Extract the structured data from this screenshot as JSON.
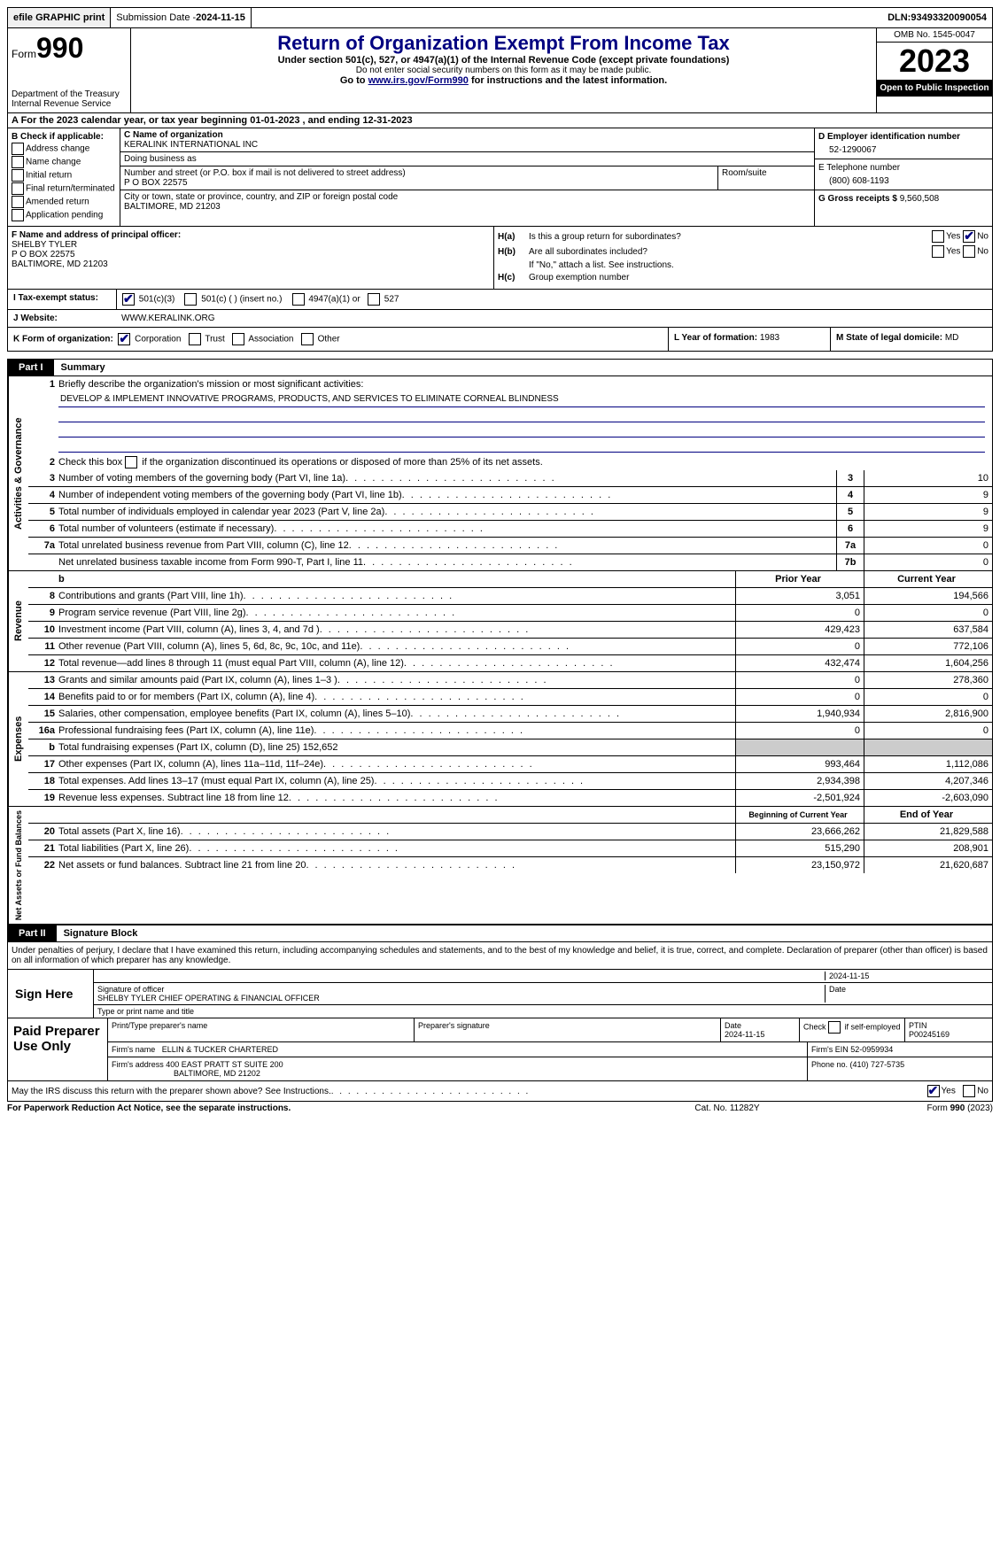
{
  "colors": {
    "accent": "#000080",
    "part_bg": "#000000",
    "shade": "#cccccc"
  },
  "topbar": {
    "efile": "efile GRAPHIC print",
    "submission_label": "Submission Date - ",
    "submission_date": "2024-11-15",
    "dln_label": "DLN: ",
    "dln": "93493320090054"
  },
  "header": {
    "form_label": "Form",
    "form_number": "990",
    "dept": "Department of the Treasury\nInternal Revenue Service",
    "title": "Return of Organization Exempt From Income Tax",
    "sub1": "Under section 501(c), 527, or 4947(a)(1) of the Internal Revenue Code (except private foundations)",
    "sub2": "Do not enter social security numbers on this form as it may be made public.",
    "sub3_pre": "Go to ",
    "sub3_link": "www.irs.gov/Form990",
    "sub3_post": " for instructions and the latest information.",
    "omb": "OMB No. 1545-0047",
    "year": "2023",
    "open": "Open to Public Inspection"
  },
  "row_a": {
    "text_pre": "A For the 2023 calendar year, or tax year beginning ",
    "begin": "01-01-2023",
    "mid": "   , and ending ",
    "end": "12-31-2023"
  },
  "section_b": {
    "label": "B Check if applicable:",
    "opts": [
      "Address change",
      "Name change",
      "Initial return",
      "Final return/terminated",
      "Amended return",
      "Application pending"
    ]
  },
  "section_c": {
    "name_label": "C Name of organization",
    "name": "KERALINK INTERNATIONAL INC",
    "dba_label": "Doing business as",
    "dba": "",
    "addr_label": "Number and street (or P.O. box if mail is not delivered to street address)",
    "addr": "P O BOX 22575",
    "room_label": "Room/suite",
    "room": "",
    "city_label": "City or town, state or province, country, and ZIP or foreign postal code",
    "city": "BALTIMORE, MD  21203"
  },
  "section_d": {
    "label": "D Employer identification number",
    "ein": "52-1290067",
    "tel_label": "E Telephone number",
    "tel": "(800) 608-1193",
    "g_label": "G Gross receipts $ ",
    "g_val": "9,560,508"
  },
  "section_f": {
    "label": "F  Name and address of principal officer:",
    "name": "SHELBY TYLER",
    "addr1": "P O BOX 22575",
    "addr2": "BALTIMORE, MD  21203"
  },
  "section_h": {
    "a_label": "H(a)",
    "a_text": "Is this a group return for subordinates?",
    "b_label": "H(b)",
    "b_text": "Are all subordinates included?",
    "b_note": "If \"No,\" attach a list. See instructions.",
    "c_label": "H(c)",
    "c_text": "Group exemption number ",
    "yes": "Yes",
    "no": "No",
    "a_no_checked": true
  },
  "row_i": {
    "label": "I    Tax-exempt status:",
    "opt1": "501(c)(3)",
    "opt2": "501(c) (   ) (insert no.)",
    "opt3": "4947(a)(1) or",
    "opt4": "527",
    "opt1_checked": true
  },
  "row_j": {
    "label": "J    Website:",
    "value": "WWW.KERALINK.ORG"
  },
  "row_k": {
    "label": "K Form of organization:",
    "opts": [
      "Corporation",
      "Trust",
      "Association",
      "Other"
    ],
    "checked_index": 0,
    "l_label": "L Year of formation: ",
    "l_val": "1983",
    "m_label": "M State of legal domicile:\n",
    "m_val": "MD"
  },
  "part1": {
    "num": "Part I",
    "title": "Summary",
    "sections": {
      "governance": {
        "label": "Activities & Governance",
        "line1_label": "Briefly describe the organization's mission or most significant activities:",
        "mission": "DEVELOP & IMPLEMENT INNOVATIVE PROGRAMS, PRODUCTS, AND SERVICES TO ELIMINATE CORNEAL BLINDNESS",
        "line2": "Check this box        if the organization discontinued its operations or disposed of more than 25% of its net assets.",
        "rows": [
          {
            "n": "3",
            "d": "Number of voting members of the governing body (Part VI, line 1a)",
            "bl": "3",
            "v": "10"
          },
          {
            "n": "4",
            "d": "Number of independent voting members of the governing body (Part VI, line 1b)",
            "bl": "4",
            "v": "9"
          },
          {
            "n": "5",
            "d": "Total number of individuals employed in calendar year 2023 (Part V, line 2a)",
            "bl": "5",
            "v": "9"
          },
          {
            "n": "6",
            "d": "Total number of volunteers (estimate if necessary)",
            "bl": "6",
            "v": "9"
          },
          {
            "n": "7a",
            "d": "Total unrelated business revenue from Part VIII, column (C), line 12",
            "bl": "7a",
            "v": "0"
          },
          {
            "n": "",
            "d": "Net unrelated business taxable income from Form 990-T, Part I, line 11",
            "bl": "7b",
            "v": "0"
          }
        ]
      },
      "revenue": {
        "label": "Revenue",
        "hdr_prior": "Prior Year",
        "hdr_current": "Current Year",
        "rows": [
          {
            "n": "8",
            "d": "Contributions and grants (Part VIII, line 1h)",
            "p": "3,051",
            "c": "194,566"
          },
          {
            "n": "9",
            "d": "Program service revenue (Part VIII, line 2g)",
            "p": "0",
            "c": "0"
          },
          {
            "n": "10",
            "d": "Investment income (Part VIII, column (A), lines 3, 4, and 7d )",
            "p": "429,423",
            "c": "637,584"
          },
          {
            "n": "11",
            "d": "Other revenue (Part VIII, column (A), lines 5, 6d, 8c, 9c, 10c, and 11e)",
            "p": "0",
            "c": "772,106"
          },
          {
            "n": "12",
            "d": "Total revenue—add lines 8 through 11 (must equal Part VIII, column (A), line 12)",
            "p": "432,474",
            "c": "1,604,256"
          }
        ]
      },
      "expenses": {
        "label": "Expenses",
        "rows": [
          {
            "n": "13",
            "d": "Grants and similar amounts paid (Part IX, column (A), lines 1–3 )",
            "p": "0",
            "c": "278,360"
          },
          {
            "n": "14",
            "d": "Benefits paid to or for members (Part IX, column (A), line 4)",
            "p": "0",
            "c": "0"
          },
          {
            "n": "15",
            "d": "Salaries, other compensation, employee benefits (Part IX, column (A), lines 5–10)",
            "p": "1,940,934",
            "c": "2,816,900"
          },
          {
            "n": "16a",
            "d": "Professional fundraising fees (Part IX, column (A), line 11e)",
            "p": "0",
            "c": "0"
          },
          {
            "n": "b",
            "d": "Total fundraising expenses (Part IX, column (D), line 25) 152,652",
            "p": "",
            "c": "",
            "shaded": true
          },
          {
            "n": "17",
            "d": "Other expenses (Part IX, column (A), lines 11a–11d, 11f–24e)",
            "p": "993,464",
            "c": "1,112,086"
          },
          {
            "n": "18",
            "d": "Total expenses. Add lines 13–17 (must equal Part IX, column (A), line 25)",
            "p": "2,934,398",
            "c": "4,207,346"
          },
          {
            "n": "19",
            "d": "Revenue less expenses. Subtract line 18 from line 12",
            "p": "-2,501,924",
            "c": "-2,603,090"
          }
        ]
      },
      "netassets": {
        "label": "Net Assets or Fund Balances",
        "hdr_begin": "Beginning of Current Year",
        "hdr_end": "End of Year",
        "rows": [
          {
            "n": "20",
            "d": "Total assets (Part X, line 16)",
            "p": "23,666,262",
            "c": "21,829,588"
          },
          {
            "n": "21",
            "d": "Total liabilities (Part X, line 26)",
            "p": "515,290",
            "c": "208,901"
          },
          {
            "n": "22",
            "d": "Net assets or fund balances. Subtract line 21 from line 20",
            "p": "23,150,972",
            "c": "21,620,687"
          }
        ]
      }
    }
  },
  "part2": {
    "num": "Part II",
    "title": "Signature Block",
    "perjury": "Under penalties of perjury, I declare that I have examined this return, including accompanying schedules and statements, and to the best of my knowledge and belief, it is true, correct, and complete. Declaration of preparer (other than officer) is based on all information of which preparer has any knowledge.",
    "sign_here": "Sign Here",
    "sig_date": "2024-11-15",
    "sig_of_officer_label": "Signature of officer",
    "officer": "SHELBY TYLER  CHIEF OPERATING & FINANCIAL OFFICER",
    "type_name_label": "Type or print name and title",
    "date_label": "Date",
    "paid": {
      "label": "Paid Preparer Use Only",
      "print_label": "Print/Type preparer's name",
      "print_name": "",
      "sig_label": "Preparer's signature",
      "date": "2024-11-15",
      "check_label": "Check         if self-employed",
      "ptin_label": "PTIN",
      "ptin": "P00245169",
      "firm_name_label": "Firm's name   ",
      "firm_name": "ELLIN & TUCKER CHARTERED",
      "firm_ein_label": "Firm's EIN ",
      "firm_ein": "52-0959934",
      "firm_addr_label": "Firm's address ",
      "firm_addr1": "400 EAST PRATT ST SUITE 200",
      "firm_addr2": "BALTIMORE, MD  21202",
      "phone_label": "Phone no. ",
      "phone": "(410) 727-5735"
    },
    "discuss": "May the IRS discuss this return with the preparer shown above? See Instructions.",
    "discuss_yes_checked": true
  },
  "footer": {
    "left": "For Paperwork Reduction Act Notice, see the separate instructions.",
    "center": "Cat. No. 11282Y",
    "right_pre": "Form ",
    "right_form": "990",
    "right_post": " (2023)"
  }
}
